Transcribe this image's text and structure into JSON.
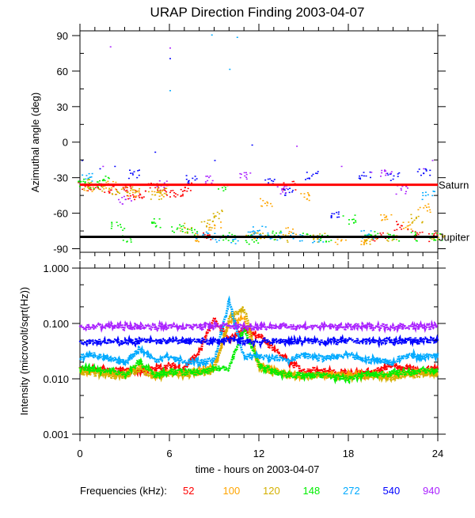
{
  "chart_data": [
    {
      "type": "scatter",
      "title": "URAP Direction Finding  2003-04-07",
      "xlabel": "",
      "ylabel": "Azimuthal angle (deg)",
      "xlim": [
        0,
        24
      ],
      "ylim": [
        -93,
        94
      ],
      "yticks": [
        "90",
        "60",
        "30",
        "0",
        "-30",
        "-60",
        "-90"
      ],
      "ytick_values": [
        90,
        60,
        30,
        0,
        -30,
        -60,
        -90
      ],
      "reference_lines": [
        {
          "label": "Saturn",
          "value": -36,
          "color": "#ff0000"
        },
        {
          "label": "Jupiter",
          "value": -80,
          "color": "#000000"
        }
      ],
      "series": [
        {
          "name": "52",
          "color": "#ff0000",
          "points": [
            [
              0.3,
              -37
            ],
            [
              1,
              -38
            ],
            [
              2,
              -40
            ],
            [
              3,
              -38
            ],
            [
              3.5,
              -44
            ],
            [
              4,
              -44
            ],
            [
              5,
              -38
            ],
            [
              6,
              -42
            ],
            [
              6.5,
              -44
            ],
            [
              7,
              -38
            ],
            [
              8.5,
              -78
            ],
            [
              14,
              -36
            ],
            [
              20,
              -80
            ],
            [
              21.5,
              -70
            ],
            [
              22.5,
              -78
            ],
            [
              23.5,
              -80
            ]
          ]
        },
        {
          "name": "100",
          "color": "#ffa500",
          "points": [
            [
              0.5,
              -38
            ],
            [
              2,
              -36
            ],
            [
              3.5,
              -42
            ],
            [
              5.2,
              -42
            ],
            [
              7.5,
              -80
            ],
            [
              9,
              -70
            ],
            [
              11.5,
              -80
            ],
            [
              12.5,
              -50
            ],
            [
              14,
              -75
            ],
            [
              15,
              -46
            ],
            [
              17.5,
              -82
            ],
            [
              19,
              -84
            ],
            [
              20.5,
              -62
            ],
            [
              22,
              -70
            ],
            [
              23,
              -55
            ]
          ]
        },
        {
          "name": "120",
          "color": "#d4b000",
          "points": [
            [
              0.4,
              -35
            ],
            [
              1.5,
              -37
            ],
            [
              2.5,
              -42
            ],
            [
              3.5,
              -40
            ],
            [
              5,
              -44
            ],
            [
              5.5,
              -40
            ],
            [
              7,
              -72
            ],
            [
              8.5,
              -68
            ],
            [
              9.3,
              -60
            ],
            [
              12,
              -80
            ],
            [
              13.5,
              -80
            ],
            [
              16,
              -80
            ],
            [
              19.5,
              -82
            ],
            [
              21,
              -80
            ],
            [
              22.5,
              -64
            ],
            [
              24,
              -80
            ]
          ]
        },
        {
          "name": "148",
          "color": "#00ee00",
          "points": [
            [
              0.3,
              -33
            ],
            [
              1,
              -35
            ],
            [
              1.5,
              -32
            ],
            [
              2.5,
              -70
            ],
            [
              3,
              -80
            ],
            [
              5,
              -68
            ],
            [
              6.5,
              -72
            ],
            [
              7.5,
              -76
            ],
            [
              9.5,
              -38
            ],
            [
              10,
              -80
            ],
            [
              11.5,
              -82
            ],
            [
              13,
              -78
            ],
            [
              15,
              -80
            ],
            [
              16.5,
              -80
            ],
            [
              18,
              -65
            ],
            [
              19.5,
              -78
            ],
            [
              21,
              -80
            ],
            [
              22.5,
              -79
            ],
            [
              23.8,
              -80
            ]
          ]
        },
        {
          "name": "272",
          "color": "#00aaff",
          "points": [
            [
              0.5,
              -30
            ],
            [
              6,
              44
            ],
            [
              8.2,
              -78
            ],
            [
              9,
              -80
            ],
            [
              10.2,
              -82
            ],
            [
              11.5,
              -78
            ],
            [
              12,
              -74
            ],
            [
              13,
              -80
            ],
            [
              14.5,
              -79
            ],
            [
              16,
              -82
            ],
            [
              19.2,
              -78
            ],
            [
              23.3,
              -44
            ],
            [
              8.8,
              91
            ],
            [
              10.5,
              89
            ],
            [
              10,
              62
            ]
          ]
        },
        {
          "name": "540",
          "color": "#0000ff",
          "points": [
            [
              0.1,
              -15
            ],
            [
              1.3,
              -22
            ],
            [
              2.3,
              -20
            ],
            [
              3.5,
              -27
            ],
            [
              5,
              -8
            ],
            [
              6,
              71
            ],
            [
              7.5,
              -30
            ],
            [
              9,
              -15
            ],
            [
              11.5,
              -2
            ],
            [
              12.8,
              -32
            ],
            [
              14,
              -42
            ],
            [
              15.5,
              -28
            ],
            [
              17,
              -60
            ],
            [
              19,
              -28
            ],
            [
              21,
              -28
            ],
            [
              23,
              -26
            ]
          ]
        },
        {
          "name": "940",
          "color": "#aa22ff",
          "points": [
            [
              2,
              81
            ],
            [
              6,
              80
            ],
            [
              1.5,
              -20
            ],
            [
              3,
              -48
            ],
            [
              5.5,
              -35
            ],
            [
              8.5,
              -32
            ],
            [
              11,
              -28
            ],
            [
              13.5,
              -40
            ],
            [
              14.5,
              -3
            ],
            [
              17.5,
              -20
            ],
            [
              19.5,
              -25
            ],
            [
              20.5,
              -26
            ],
            [
              21.5,
              -40
            ],
            [
              23,
              -22
            ],
            [
              23.6,
              -15
            ]
          ]
        }
      ]
    },
    {
      "type": "line",
      "xlabel": "time - hours on 2003-04-07",
      "ylabel": "Intensity (microvolt/sqrt(Hz))",
      "xlim": [
        0,
        24
      ],
      "ylim": [
        0.001,
        1.0
      ],
      "yscale": "log",
      "xticks": [
        "0",
        "6",
        "12",
        "18",
        "24"
      ],
      "xtick_values": [
        0,
        6,
        12,
        18,
        24
      ],
      "yticks": [
        "1.000",
        "0.100",
        "0.010",
        "0.001"
      ],
      "ytick_values": [
        1.0,
        0.1,
        0.01,
        0.001
      ],
      "x": [
        0,
        1,
        2,
        3,
        4,
        5,
        6,
        7,
        8,
        9,
        10,
        11,
        12,
        13,
        14,
        15,
        16,
        17,
        18,
        19,
        20,
        21,
        22,
        23,
        24
      ],
      "series": [
        {
          "name": "52",
          "color": "#ff0000",
          "values": [
            0.015,
            0.015,
            0.014,
            0.014,
            0.014,
            0.015,
            0.017,
            0.016,
            0.03,
            0.12,
            0.05,
            0.08,
            0.06,
            0.035,
            0.02,
            0.014,
            0.015,
            0.013,
            0.013,
            0.013,
            0.014,
            0.018,
            0.015,
            0.014,
            0.016
          ]
        },
        {
          "name": "100",
          "color": "#ffa500",
          "values": [
            0.014,
            0.014,
            0.013,
            0.012,
            0.018,
            0.012,
            0.013,
            0.013,
            0.014,
            0.016,
            0.1,
            0.13,
            0.018,
            0.014,
            0.012,
            0.012,
            0.012,
            0.012,
            0.012,
            0.012,
            0.012,
            0.012,
            0.013,
            0.013,
            0.013
          ]
        },
        {
          "name": "120",
          "color": "#d4b000",
          "values": [
            0.013,
            0.013,
            0.012,
            0.011,
            0.015,
            0.011,
            0.012,
            0.012,
            0.013,
            0.014,
            0.12,
            0.2,
            0.016,
            0.013,
            0.012,
            0.011,
            0.012,
            0.011,
            0.011,
            0.011,
            0.011,
            0.011,
            0.012,
            0.012,
            0.012
          ]
        },
        {
          "name": "148",
          "color": "#00ee00",
          "values": [
            0.016,
            0.015,
            0.014,
            0.012,
            0.02,
            0.012,
            0.014,
            0.013,
            0.013,
            0.015,
            0.016,
            0.08,
            0.018,
            0.013,
            0.012,
            0.011,
            0.012,
            0.011,
            0.01,
            0.012,
            0.012,
            0.013,
            0.013,
            0.014,
            0.014
          ]
        },
        {
          "name": "272",
          "color": "#00aaff",
          "values": [
            0.025,
            0.028,
            0.022,
            0.02,
            0.035,
            0.022,
            0.025,
            0.02,
            0.02,
            0.022,
            0.25,
            0.025,
            0.025,
            0.025,
            0.022,
            0.027,
            0.024,
            0.024,
            0.027,
            0.022,
            0.022,
            0.02,
            0.027,
            0.025,
            0.027
          ]
        },
        {
          "name": "540",
          "color": "#0000ff",
          "values": [
            0.048,
            0.048,
            0.047,
            0.047,
            0.048,
            0.048,
            0.048,
            0.048,
            0.048,
            0.048,
            0.05,
            0.048,
            0.047,
            0.048,
            0.048,
            0.048,
            0.048,
            0.048,
            0.048,
            0.048,
            0.048,
            0.048,
            0.05,
            0.05,
            0.048
          ]
        },
        {
          "name": "940",
          "color": "#aa22ff",
          "values": [
            0.088,
            0.088,
            0.09,
            0.088,
            0.088,
            0.088,
            0.088,
            0.088,
            0.088,
            0.09,
            0.09,
            0.088,
            0.088,
            0.088,
            0.088,
            0.088,
            0.088,
            0.088,
            0.088,
            0.088,
            0.088,
            0.088,
            0.088,
            0.088,
            0.088
          ]
        }
      ]
    }
  ],
  "legend": {
    "label": "Frequencies (kHz):"
  }
}
